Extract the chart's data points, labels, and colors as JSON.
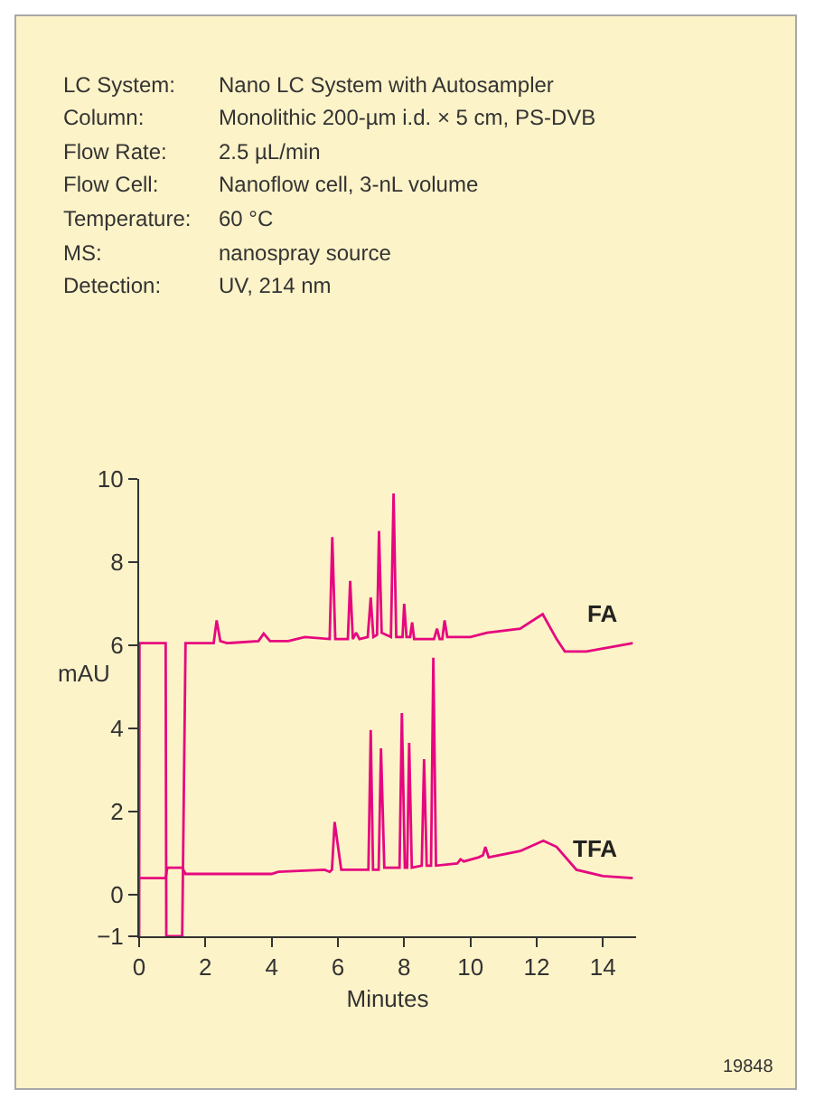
{
  "chart_data": {
    "type": "line",
    "annotations": [
      "LC System: Nano LC System with Autosampler",
      "Column: Monolithic 200-µm i.d. × 5 cm, PS-DVB",
      "Flow Rate: 2.5 µL/min",
      "Flow Cell: Nanoflow cell, 3-nL volume",
      "Temperature: 60 °C",
      "MS: nanospray source",
      "Detection: UV, 214 nm",
      "19848"
    ],
    "xlabel": "Minutes",
    "ylabel": "mAU",
    "xlim": [
      0,
      15
    ],
    "xticks": [
      0,
      2,
      4,
      6,
      8,
      10,
      12,
      14
    ],
    "ylim": [
      -1,
      10
    ],
    "yticks": [
      {
        "value": -1,
        "label": "−1"
      },
      0,
      2,
      4,
      6,
      8,
      10
    ],
    "grid": false,
    "legend": false,
    "marker": "none",
    "line_style": "solid",
    "series": [
      {
        "name": "FA",
        "color": "#e6077f",
        "x": [
          0,
          0.01,
          0.8,
          0.82,
          1.3,
          1.4,
          2.25,
          2.34,
          2.45,
          2.65,
          3.6,
          3.76,
          3.95,
          4.5,
          5.0,
          5.75,
          5.83,
          5.92,
          6.3,
          6.37,
          6.45,
          6.55,
          6.65,
          6.9,
          6.99,
          7.07,
          7.18,
          7.24,
          7.32,
          7.6,
          7.68,
          7.76,
          7.95,
          8.0,
          8.07,
          8.18,
          8.24,
          8.3,
          8.9,
          8.99,
          9.07,
          9.15,
          9.22,
          9.3,
          10.0,
          10.5,
          11.5,
          12.18,
          12.6,
          12.85,
          13.5,
          14.9
        ],
        "values": [
          -1,
          6.05,
          6.05,
          -1,
          -1,
          6.05,
          6.05,
          6.6,
          6.1,
          6.05,
          6.1,
          6.28,
          6.1,
          6.1,
          6.2,
          6.15,
          8.6,
          6.15,
          6.15,
          7.55,
          6.15,
          6.3,
          6.15,
          6.2,
          7.15,
          6.2,
          6.25,
          8.75,
          6.3,
          6.2,
          9.65,
          6.2,
          6.2,
          7.0,
          6.2,
          6.2,
          6.55,
          6.15,
          6.15,
          6.4,
          6.15,
          6.15,
          6.6,
          6.2,
          6.2,
          6.3,
          6.4,
          6.75,
          6.15,
          5.85,
          5.85,
          6.05
        ]
      },
      {
        "name": "TFA",
        "color": "#e6077f",
        "x": [
          0,
          0.8,
          0.85,
          1.3,
          1.4,
          4.0,
          4.2,
          5.6,
          5.75,
          5.82,
          5.9,
          6.1,
          6.92,
          6.99,
          7.06,
          7.23,
          7.3,
          7.4,
          7.86,
          7.93,
          8.02,
          8.09,
          8.15,
          8.23,
          8.53,
          8.6,
          8.68,
          8.81,
          8.88,
          8.96,
          9.6,
          9.7,
          9.8,
          10.25,
          10.38,
          10.45,
          10.55,
          11.5,
          12.2,
          12.6,
          13.2,
          14.0,
          14.9
        ],
        "values": [
          0.4,
          0.4,
          0.65,
          0.65,
          0.5,
          0.5,
          0.55,
          0.6,
          0.55,
          0.6,
          1.75,
          0.6,
          0.6,
          3.96,
          0.6,
          0.6,
          3.52,
          0.65,
          0.65,
          4.37,
          0.65,
          0.65,
          3.65,
          0.65,
          0.7,
          3.26,
          0.7,
          0.7,
          5.7,
          0.7,
          0.75,
          0.85,
          0.8,
          0.9,
          0.95,
          1.15,
          0.9,
          1.05,
          1.3,
          1.15,
          0.6,
          0.45,
          0.4
        ]
      }
    ]
  }
}
